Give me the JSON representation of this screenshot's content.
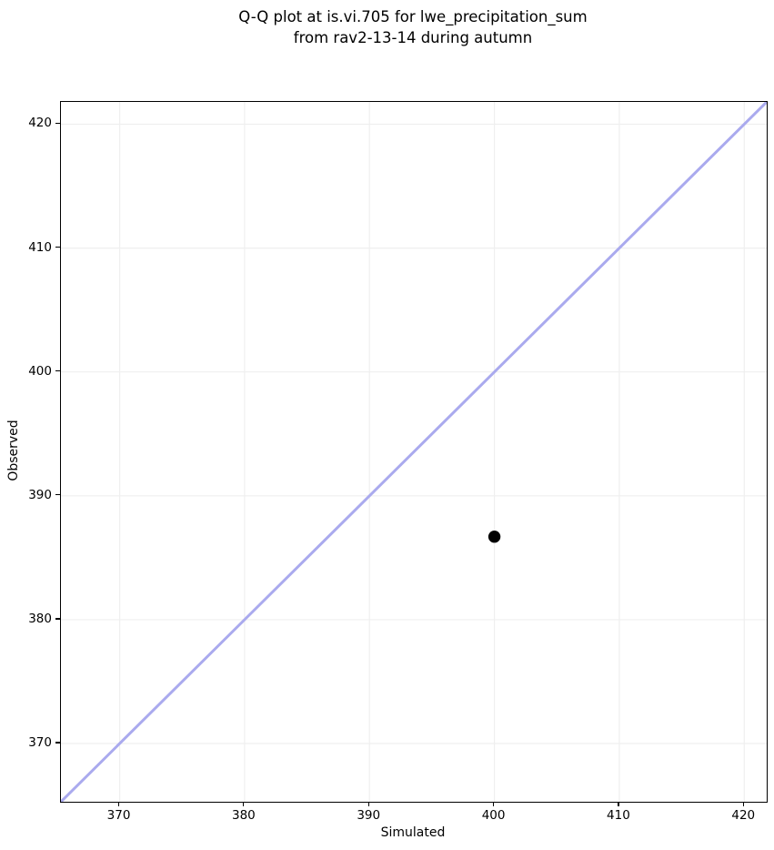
{
  "figure": {
    "title_line1": "Q-Q plot at is.vi.705 for lwe_precipitation_sum",
    "title_line2": "from rav2-13-14 during autumn"
  },
  "chart_data": {
    "type": "scatter",
    "title": "Q-Q plot at is.vi.705 for lwe_precipitation_sum\nfrom rav2-13-14 during autumn",
    "xlabel": "Simulated",
    "ylabel": "Observed",
    "xlim": [
      365.3,
      421.8
    ],
    "ylim": [
      365.3,
      421.8
    ],
    "xticks": [
      370,
      380,
      390,
      400,
      410,
      420
    ],
    "yticks": [
      370,
      380,
      390,
      400,
      410,
      420
    ],
    "grid": true,
    "legend": null,
    "points": [
      {
        "x": 400.0,
        "y": 386.7
      }
    ],
    "identity_line": {
      "from": 365.3,
      "to": 421.8
    },
    "styles": {
      "identity_line_color": "#aaaaee",
      "identity_line_width": 3,
      "point_color": "#000000",
      "point_radius": 6.7,
      "grid_color": "#efefef",
      "spine_color": "#000000",
      "background": "#ffffff"
    }
  }
}
